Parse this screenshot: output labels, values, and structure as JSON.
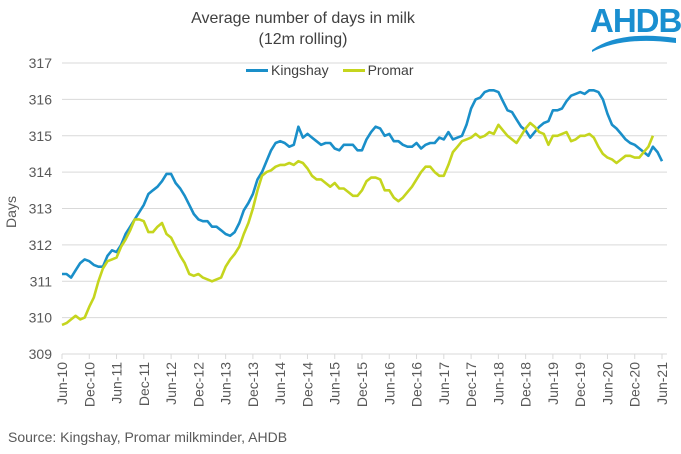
{
  "logo": {
    "text": "AHDB"
  },
  "source": "Source: Kingshay, Promar milkminder, AHDB",
  "chart_data": {
    "type": "line",
    "title": "Average number of days in milk",
    "subtitle": "(12m rolling)",
    "xlabel": "",
    "ylabel": "Days",
    "ylim": [
      309,
      317
    ],
    "yticks": [
      309,
      310,
      311,
      312,
      313,
      314,
      315,
      316,
      317
    ],
    "grid": true,
    "legend_position": "top-center",
    "xtick_labels": [
      "Jun-10",
      "Dec-10",
      "Jun-11",
      "Dec-11",
      "Jun-12",
      "Dec-12",
      "Jun-13",
      "Dec-13",
      "Jun-14",
      "Dec-14",
      "Jun-15",
      "Dec-15",
      "Jun-16",
      "Dec-16",
      "Jun-17",
      "Dec-17",
      "Jun-18",
      "Dec-18",
      "Jun-19",
      "Dec-19",
      "Jun-20",
      "Dec-20",
      "Jun-21"
    ],
    "x_start": "Jun-10",
    "x_frequency": "monthly",
    "series": [
      {
        "name": "Kingshay",
        "color": "#1a8fc9",
        "values": [
          311.2,
          311.2,
          311.1,
          311.3,
          311.5,
          311.6,
          311.55,
          311.45,
          311.4,
          311.4,
          311.7,
          311.85,
          311.8,
          312.0,
          312.3,
          312.5,
          312.7,
          312.9,
          313.1,
          313.4,
          313.5,
          313.6,
          313.75,
          313.95,
          313.95,
          313.7,
          313.55,
          313.35,
          313.1,
          312.85,
          312.7,
          312.65,
          312.65,
          312.5,
          312.5,
          312.4,
          312.3,
          312.25,
          312.35,
          312.6,
          312.95,
          313.15,
          313.4,
          313.8,
          314.0,
          314.3,
          314.6,
          314.8,
          314.85,
          314.8,
          314.7,
          314.75,
          315.25,
          314.95,
          315.05,
          314.95,
          314.85,
          314.75,
          314.8,
          314.8,
          314.65,
          314.6,
          314.75,
          314.75,
          314.75,
          314.6,
          314.6,
          314.9,
          315.1,
          315.25,
          315.2,
          315.0,
          315.05,
          314.85,
          314.85,
          314.75,
          314.7,
          314.7,
          314.8,
          314.65,
          314.75,
          314.8,
          314.8,
          314.95,
          314.9,
          315.1,
          314.9,
          314.95,
          315.0,
          315.3,
          315.75,
          316.0,
          316.05,
          316.2,
          316.25,
          316.25,
          316.2,
          315.95,
          315.7,
          315.65,
          315.45,
          315.25,
          315.15,
          314.95,
          315.1,
          315.25,
          315.35,
          315.4,
          315.7,
          315.7,
          315.75,
          315.95,
          316.1,
          316.15,
          316.2,
          316.15,
          316.25,
          316.25,
          316.2,
          316.0,
          315.6,
          315.3,
          315.2,
          315.05,
          314.9,
          314.8,
          314.75,
          314.65,
          314.55,
          314.45,
          314.7,
          314.55,
          314.3
        ]
      },
      {
        "name": "Promar",
        "color": "#c5d51e",
        "values": [
          309.8,
          309.85,
          309.95,
          310.05,
          309.95,
          310.0,
          310.3,
          310.55,
          311.0,
          311.35,
          311.55,
          311.6,
          311.65,
          311.95,
          312.15,
          312.4,
          312.7,
          312.7,
          312.65,
          312.35,
          312.35,
          312.5,
          312.6,
          312.3,
          312.2,
          311.95,
          311.7,
          311.5,
          311.2,
          311.15,
          311.2,
          311.1,
          311.05,
          311.0,
          311.05,
          311.1,
          311.4,
          311.6,
          311.75,
          311.95,
          312.3,
          312.6,
          313.0,
          313.5,
          313.9,
          314.0,
          314.05,
          314.15,
          314.2,
          314.2,
          314.25,
          314.2,
          314.3,
          314.25,
          314.1,
          313.9,
          313.8,
          313.8,
          313.7,
          313.6,
          313.7,
          313.55,
          313.55,
          313.45,
          313.35,
          313.35,
          313.5,
          313.75,
          313.85,
          313.85,
          313.8,
          313.5,
          313.5,
          313.3,
          313.2,
          313.3,
          313.45,
          313.6,
          313.8,
          314.0,
          314.15,
          314.15,
          314.0,
          313.9,
          313.9,
          314.2,
          314.55,
          314.7,
          314.85,
          314.9,
          314.95,
          315.05,
          314.95,
          315.0,
          315.1,
          315.05,
          315.3,
          315.15,
          315.0,
          314.9,
          314.8,
          315.0,
          315.2,
          315.35,
          315.25,
          315.1,
          315.05,
          314.75,
          315.0,
          315.0,
          315.05,
          315.1,
          314.85,
          314.9,
          315.0,
          315.0,
          315.05,
          314.95,
          314.7,
          314.5,
          314.4,
          314.35,
          314.25,
          314.35,
          314.45,
          314.45,
          314.4,
          314.4,
          314.55,
          314.7,
          315.0
        ]
      }
    ]
  }
}
